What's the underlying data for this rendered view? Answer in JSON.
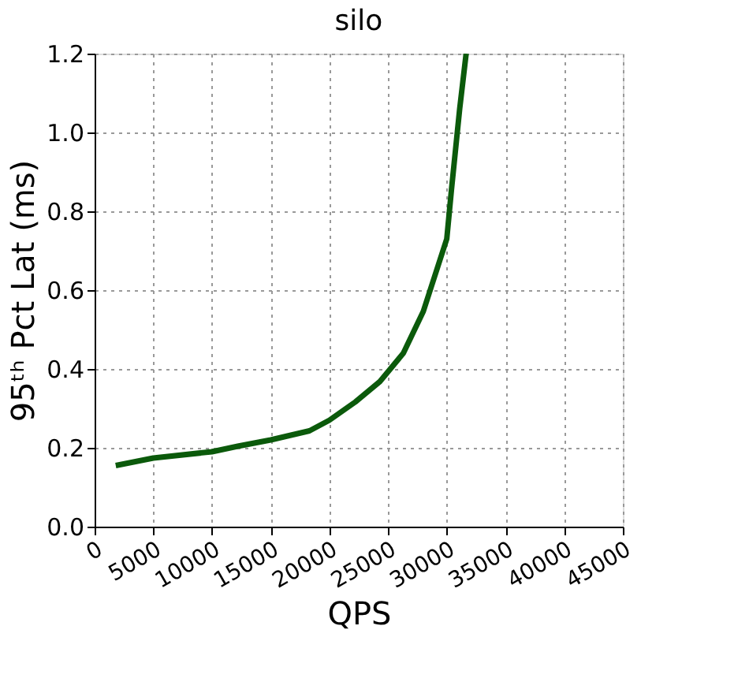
{
  "chart_data": {
    "type": "line",
    "title": "silo",
    "xlabel": "QPS",
    "ylabel": "95ᵗʰ Pct Lat (ms)",
    "x": [
      1800,
      5000,
      10000,
      12200,
      15000,
      18300,
      20000,
      22200,
      24300,
      26300,
      28000,
      30000,
      30400,
      31100,
      31650
    ],
    "series": [
      {
        "color": "#0b5a0b",
        "values": [
          0.155,
          0.174,
          0.19,
          0.204,
          0.22,
          0.243,
          0.27,
          0.316,
          0.368,
          0.44,
          0.546,
          0.73,
          0.855,
          1.06,
          1.2
        ]
      }
    ],
    "xlim": [
      0,
      45000
    ],
    "ylim": [
      0,
      1.2
    ],
    "xticks": [
      0,
      5000,
      10000,
      15000,
      20000,
      25000,
      30000,
      35000,
      40000,
      45000
    ],
    "yticks": [
      {
        "value": 0,
        "label": "0.0"
      },
      0.2,
      0.4,
      0.6,
      0.8,
      {
        "value": 1,
        "label": "1.0"
      },
      1.2
    ],
    "grid": true,
    "line_style": "solid",
    "marker": "none"
  }
}
